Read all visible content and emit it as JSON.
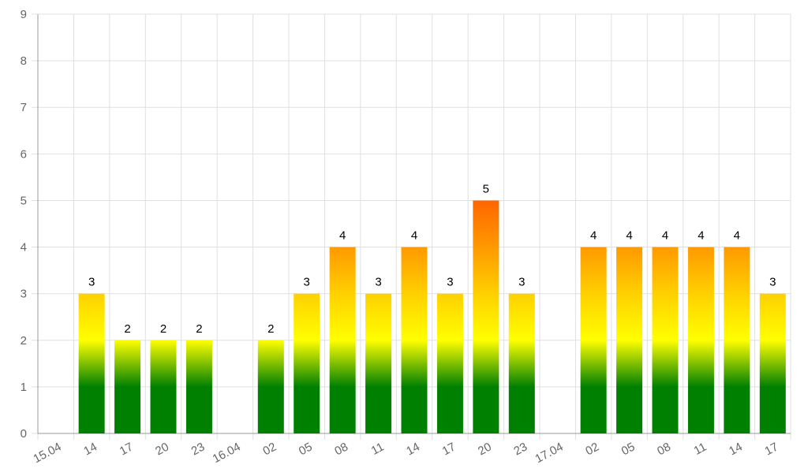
{
  "chart_data": {
    "type": "bar",
    "x_ticks": [
      "15.04",
      "14",
      "17",
      "20",
      "23",
      "16.04",
      "02",
      "05",
      "08",
      "11",
      "14",
      "17",
      "20",
      "23",
      "17.04",
      "02",
      "05",
      "08",
      "11",
      "14",
      "17"
    ],
    "values": [
      null,
      3,
      2,
      2,
      2,
      null,
      2,
      3,
      4,
      3,
      4,
      3,
      5,
      3,
      null,
      4,
      4,
      4,
      4,
      4,
      3
    ],
    "ylim": [
      0,
      9
    ],
    "y_ticks": [
      0,
      1,
      2,
      3,
      4,
      5,
      6,
      7,
      8,
      9
    ],
    "grid": true,
    "data_labels": true,
    "legend": "none",
    "title": "",
    "xlabel": "",
    "ylabel": "",
    "colors": {
      "gradient_stops": [
        {
          "value": 0,
          "color": "#008000"
        },
        {
          "value": 1,
          "color": "#008000"
        },
        {
          "value": 2,
          "color": "#ffff00"
        },
        {
          "value": 3,
          "color": "#ffd000"
        },
        {
          "value": 4,
          "color": "#ff9900"
        },
        {
          "value": 5,
          "color": "#ff6600"
        }
      ],
      "grid": "#e0e0e0",
      "axis": "#999999",
      "tick_text": "#666666",
      "label_text": "#000000"
    }
  }
}
